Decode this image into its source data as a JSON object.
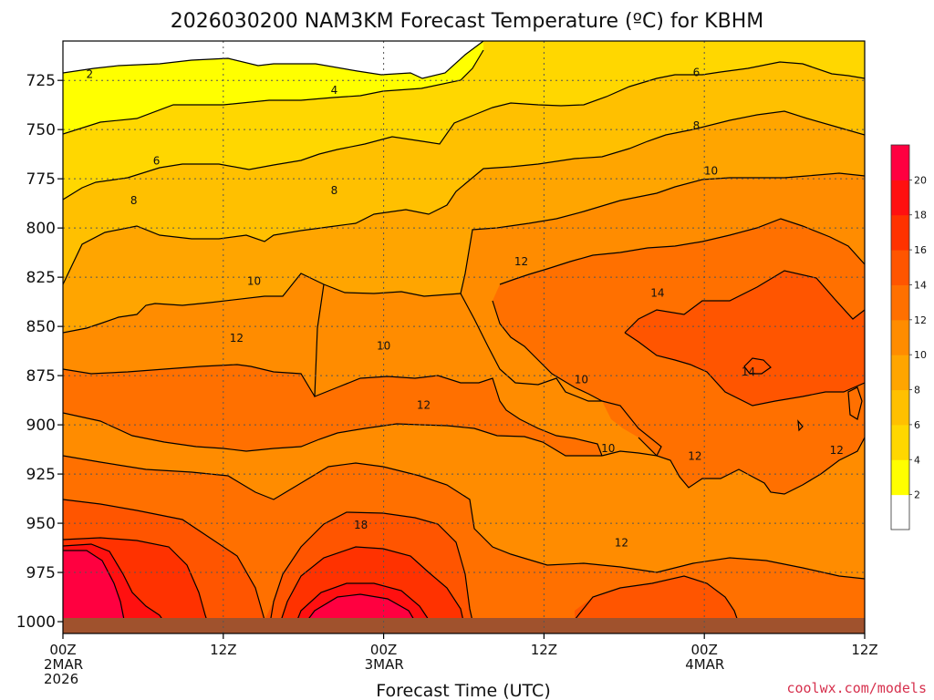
{
  "chart_data": {
    "type": "heatmap",
    "title": "2026030200 NAM3KM Forecast Temperature (ºC) for KBHM",
    "xlabel": "Forecast Time (UTC)",
    "ylabel": "",
    "x_ticks": [
      {
        "hours": 0,
        "lines": [
          "00Z",
          "2MAR",
          "2026"
        ]
      },
      {
        "hours": 12,
        "lines": [
          "12Z"
        ]
      },
      {
        "hours": 24,
        "lines": [
          "00Z",
          "3MAR"
        ]
      },
      {
        "hours": 36,
        "lines": [
          "12Z"
        ]
      },
      {
        "hours": 48,
        "lines": [
          "00Z",
          "4MAR"
        ]
      },
      {
        "hours": 60,
        "lines": [
          "12Z"
        ]
      }
    ],
    "xlim_hours": [
      0,
      60
    ],
    "y_ticks": [
      725,
      750,
      775,
      800,
      825,
      850,
      875,
      900,
      925,
      950,
      975,
      1000
    ],
    "ylim_hpa": [
      705,
      1006
    ],
    "y_scale": "pressure (inverted)",
    "grid": true,
    "colorbar": {
      "levels": [
        2,
        4,
        6,
        8,
        10,
        12,
        14,
        16,
        18,
        20
      ],
      "colors": [
        "#ffffff",
        "#ffff00",
        "#ffd700",
        "#ffc000",
        "#ffa500",
        "#ff8c00",
        "#ff7000",
        "#ff5500",
        "#ff3200",
        "#ff1010",
        "#ff0040"
      ]
    },
    "contour_labels": [
      {
        "value": "2",
        "hours": 2.0,
        "hpa": 722
      },
      {
        "value": "4",
        "hours": 20.3,
        "hpa": 730
      },
      {
        "value": "6",
        "hours": 7.0,
        "hpa": 766
      },
      {
        "value": "6",
        "hours": 47.4,
        "hpa": 721
      },
      {
        "value": "8",
        "hours": 5.3,
        "hpa": 786
      },
      {
        "value": "8",
        "hours": 20.3,
        "hpa": 781
      },
      {
        "value": "8",
        "hours": 47.4,
        "hpa": 748
      },
      {
        "value": "10",
        "hours": 14.3,
        "hpa": 827
      },
      {
        "value": "10",
        "hours": 24.0,
        "hpa": 860
      },
      {
        "value": "10",
        "hours": 38.8,
        "hpa": 877
      },
      {
        "value": "10",
        "hours": 40.8,
        "hpa": 912
      },
      {
        "value": "10",
        "hours": 48.5,
        "hpa": 771
      },
      {
        "value": "12",
        "hours": 13.0,
        "hpa": 856
      },
      {
        "value": "12",
        "hours": 27.0,
        "hpa": 890
      },
      {
        "value": "12",
        "hours": 34.3,
        "hpa": 817
      },
      {
        "value": "12",
        "hours": 41.8,
        "hpa": 960
      },
      {
        "value": "12",
        "hours": 47.3,
        "hpa": 916
      },
      {
        "value": "12",
        "hours": 57.9,
        "hpa": 913
      },
      {
        "value": "14",
        "hours": 44.5,
        "hpa": 833
      },
      {
        "value": "14",
        "hours": 51.3,
        "hpa": 873
      },
      {
        "value": "18",
        "hours": 22.3,
        "hpa": 951
      }
    ]
  },
  "credit": "coolwx.com/models"
}
